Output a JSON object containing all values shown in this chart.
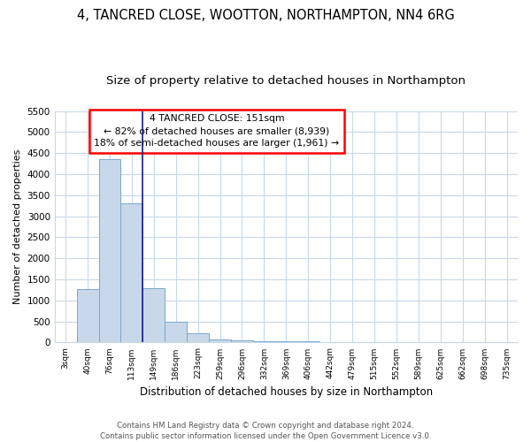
{
  "title": "4, TANCRED CLOSE, WOOTTON, NORTHAMPTON, NN4 6RG",
  "subtitle": "Size of property relative to detached houses in Northampton",
  "xlabel": "Distribution of detached houses by size in Northampton",
  "ylabel": "Number of detached properties",
  "footer1": "Contains HM Land Registry data © Crown copyright and database right 2024.",
  "footer2": "Contains public sector information licensed under the Open Government Licence v3.0.",
  "annotation_line1": "4 TANCRED CLOSE: 151sqm",
  "annotation_line2": "← 82% of detached houses are smaller (8,939)",
  "annotation_line3": "18% of semi-detached houses are larger (1,961) →",
  "bar_color": "#c8d8ea",
  "bar_edge_color": "#7ba7c8",
  "vline_color": "#1a1a8a",
  "bar_heights": [
    0,
    1260,
    4350,
    3300,
    1280,
    490,
    225,
    80,
    55,
    40,
    40,
    40,
    0,
    0,
    0,
    0,
    0,
    0,
    0,
    0,
    0
  ],
  "categories": [
    "3sqm",
    "40sqm",
    "76sqm",
    "113sqm",
    "149sqm",
    "186sqm",
    "223sqm",
    "259sqm",
    "296sqm",
    "332sqm",
    "369sqm",
    "406sqm",
    "442sqm",
    "479sqm",
    "515sqm",
    "552sqm",
    "589sqm",
    "625sqm",
    "662sqm",
    "698sqm",
    "735sqm"
  ],
  "ylim": [
    0,
    5500
  ],
  "yticks": [
    0,
    500,
    1000,
    1500,
    2000,
    2500,
    3000,
    3500,
    4000,
    4500,
    5000,
    5500
  ],
  "grid_color": "#c8d8e8",
  "background_color": "#ffffff",
  "title_fontsize": 10.5,
  "subtitle_fontsize": 9.5,
  "vline_index": 4
}
